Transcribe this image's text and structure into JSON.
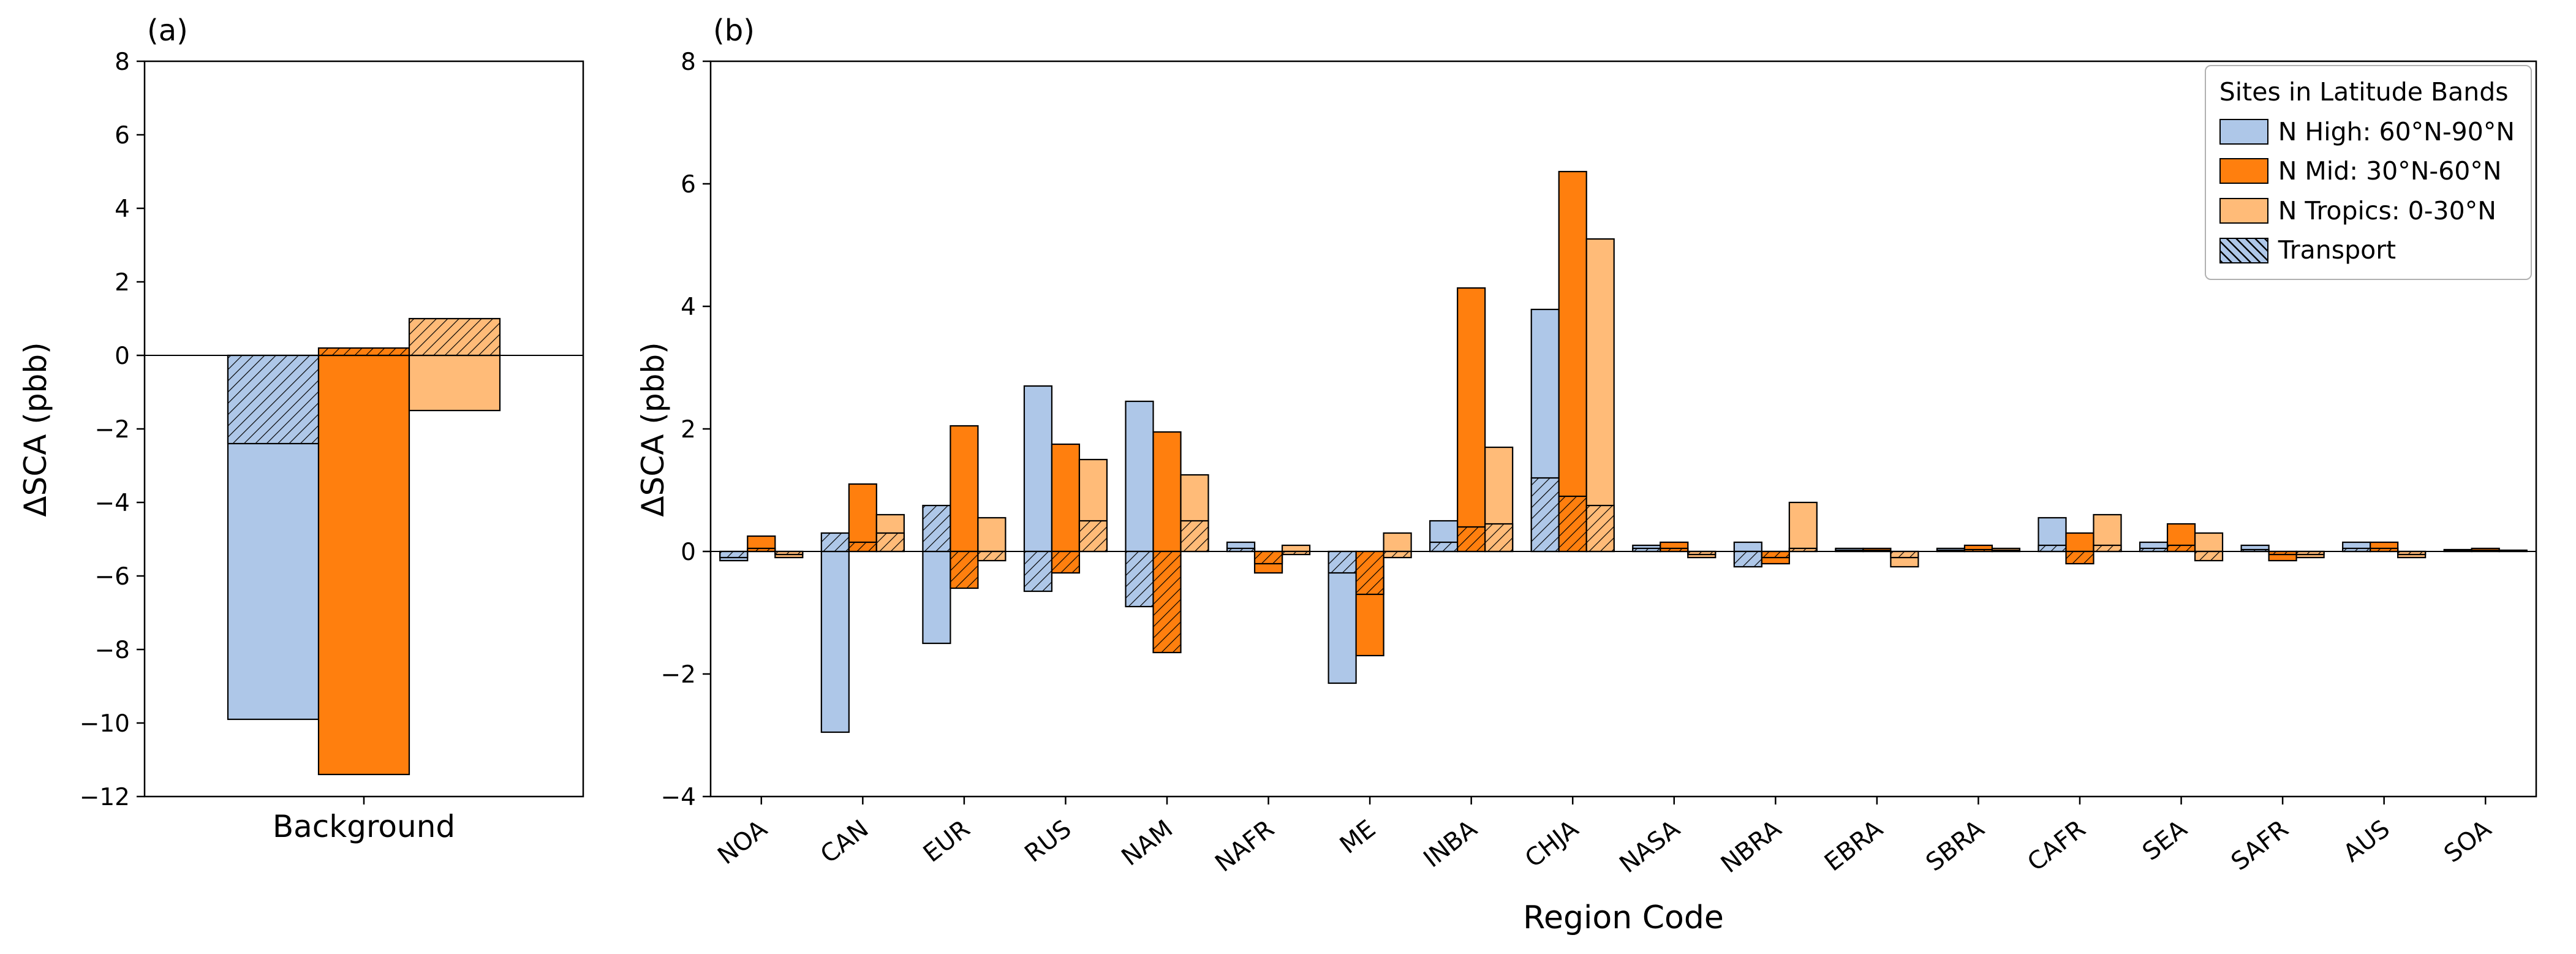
{
  "panels": {
    "a": {
      "label": "(a)",
      "ylabel": "ΔSCA (pbb)",
      "xcategory": "Background"
    },
    "b": {
      "label": "(b)",
      "ylabel": "ΔSCA (pbb)",
      "xlabel": "Region Code"
    }
  },
  "legend": {
    "title": "Sites in Latitude Bands",
    "entries": [
      {
        "label": "N High: 60°N-90°N",
        "color": "#aec7e8",
        "hatched": false
      },
      {
        "label": "N Mid: 30°N-60°N",
        "color": "#ff7f0e",
        "hatched": false
      },
      {
        "label": "N Tropics: 0-30°N",
        "color": "#ffbb78",
        "hatched": false
      },
      {
        "label": "Transport",
        "color": "#aec7e8",
        "hatched": true
      }
    ]
  },
  "colors": {
    "n_high": "#aec7e8",
    "n_mid": "#ff7f0e",
    "n_tropics": "#ffbb78",
    "edge": "#000000"
  },
  "chart_data": [
    {
      "type": "bar",
      "panel": "a",
      "title": "",
      "categories": [
        "Background"
      ],
      "xlabel": "",
      "ylabel": "ΔSCA (pbb)",
      "ylim": [
        -12,
        8
      ],
      "ytick_step": 2,
      "grid": false,
      "series": [
        {
          "name": "N High: 60°N-90°N",
          "values": [
            -9.9
          ],
          "transport": [
            -2.4
          ]
        },
        {
          "name": "N Mid: 30°N-60°N",
          "values": [
            -11.4
          ],
          "transport": [
            0.2
          ]
        },
        {
          "name": "N Tropics: 0-30°N",
          "values": [
            -1.5
          ],
          "transport": [
            1.0
          ]
        }
      ]
    },
    {
      "type": "bar",
      "panel": "b",
      "title": "",
      "categories": [
        "NOA",
        "CAN",
        "EUR",
        "RUS",
        "NAM",
        "NAFR",
        "ME",
        "INBA",
        "CHJA",
        "NASA",
        "NBRA",
        "EBRA",
        "SBRA",
        "CAFR",
        "SEA",
        "SAFR",
        "AUS",
        "SOA"
      ],
      "xlabel": "Region Code",
      "ylabel": "ΔSCA (pbb)",
      "ylim": [
        -4,
        8
      ],
      "ytick_step": 2,
      "grid": false,
      "legend_position": "upper right",
      "series": [
        {
          "name": "N High: 60°N-90°N",
          "values": [
            -0.15,
            -2.95,
            -1.5,
            2.7,
            2.45,
            0.15,
            -2.15,
            0.5,
            3.95,
            0.1,
            0.15,
            0.05,
            0.05,
            0.55,
            0.15,
            0.1,
            0.15,
            0.03
          ],
          "transport": [
            -0.1,
            0.3,
            0.75,
            -0.65,
            -0.9,
            0.05,
            -0.35,
            0.15,
            1.2,
            0.05,
            -0.25,
            0.02,
            0.02,
            0.1,
            0.05,
            0.03,
            0.05,
            0.01
          ]
        },
        {
          "name": "N Mid: 30°N-60°N",
          "values": [
            0.25,
            1.1,
            2.05,
            1.75,
            1.95,
            -0.35,
            -1.7,
            4.3,
            6.2,
            0.15,
            -0.2,
            0.05,
            0.1,
            0.3,
            0.45,
            -0.15,
            0.15,
            0.05
          ],
          "transport": [
            0.05,
            0.15,
            -0.6,
            -0.35,
            -1.65,
            -0.2,
            -0.7,
            0.4,
            0.9,
            0.05,
            -0.1,
            0.02,
            0.03,
            -0.2,
            0.1,
            -0.05,
            0.05,
            0.02
          ]
        },
        {
          "name": "N Tropics: 0-30°N",
          "values": [
            -0.1,
            0.6,
            0.55,
            1.5,
            1.25,
            0.1,
            0.3,
            1.7,
            5.1,
            -0.1,
            0.8,
            -0.25,
            0.05,
            0.6,
            0.3,
            -0.1,
            -0.1,
            0.02
          ],
          "transport": [
            -0.05,
            0.3,
            -0.15,
            0.5,
            0.5,
            -0.05,
            -0.1,
            0.45,
            0.75,
            -0.05,
            0.05,
            -0.1,
            0.02,
            0.1,
            -0.15,
            -0.05,
            -0.05,
            0.01
          ]
        }
      ]
    }
  ]
}
